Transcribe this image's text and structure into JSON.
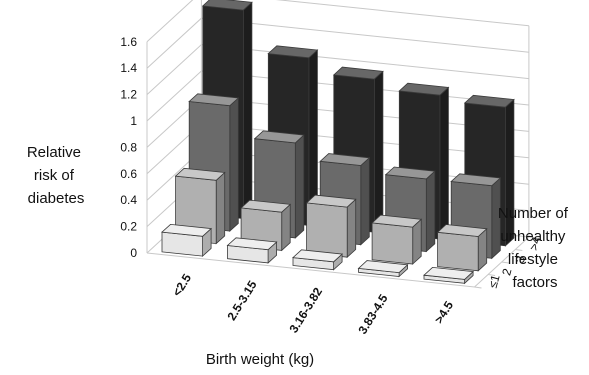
{
  "chart_data": {
    "type": "bar",
    "subtype": "3d-column",
    "xlabel": "Birth weight (kg)",
    "ylabel_lines": [
      "Relative",
      "risk of",
      "diabetes"
    ],
    "zlabel_lines": [
      "Number of",
      "unhealthy",
      "lifestyle",
      "factors"
    ],
    "categories": [
      "<2.5",
      "2.5-3.15",
      "3.16-3.82",
      "3.83-4.5",
      ">4.5"
    ],
    "depth_categories": [
      "≤1",
      "2",
      "3",
      ">4"
    ],
    "ylim": [
      0,
      1.6
    ],
    "yticks": [
      "0",
      "0.2",
      "0.4",
      "0.6",
      "0.8",
      "1",
      "1.2",
      "1.4",
      "1.6"
    ],
    "series": [
      {
        "name": "≤1",
        "values": [
          0.15,
          0.1,
          0.06,
          0.03,
          0.03
        ],
        "color": "#e6e6e6"
      },
      {
        "name": "2",
        "values": [
          0.48,
          0.29,
          0.38,
          0.28,
          0.26
        ],
        "color": "#b0b0b0"
      },
      {
        "name": "3",
        "values": [
          0.95,
          0.72,
          0.6,
          0.55,
          0.55
        ],
        "color": "#6a6a6a"
      },
      {
        "name": ">4",
        "values": [
          1.58,
          1.27,
          1.16,
          1.09,
          1.05
        ],
        "color": "#262626"
      }
    ]
  }
}
